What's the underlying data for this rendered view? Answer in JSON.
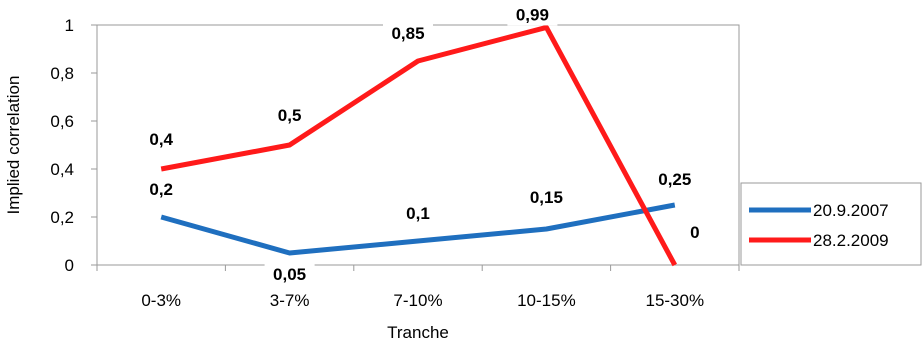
{
  "chart_data": {
    "type": "line",
    "categories": [
      "0-3%",
      "3-7%",
      "7-10%",
      "10-15%",
      "15-30%"
    ],
    "series": [
      {
        "name": "20.9.2007",
        "color": "#1f6fbf",
        "values": [
          0.2,
          0.05,
          0.1,
          0.15,
          0.25
        ],
        "labels": [
          "0,2",
          "0,05",
          "0,1",
          "0,15",
          "0,25"
        ]
      },
      {
        "name": "28.2.2009",
        "color": "#ff1a1a",
        "values": [
          0.4,
          0.5,
          0.85,
          0.99,
          0
        ],
        "labels": [
          "0,4",
          "0,5",
          "0,85",
          "0,99",
          "0"
        ]
      }
    ],
    "xlabel": "Tranche",
    "ylabel": "Implied correlation",
    "ylim": [
      0,
      1
    ],
    "yticks": [
      0,
      0.2,
      0.4,
      0.6,
      0.8,
      1
    ],
    "ytick_labels": [
      "0",
      "0,2",
      "0,4",
      "0,6",
      "0,8",
      "1"
    ],
    "grid": false,
    "legend_position": "right"
  }
}
